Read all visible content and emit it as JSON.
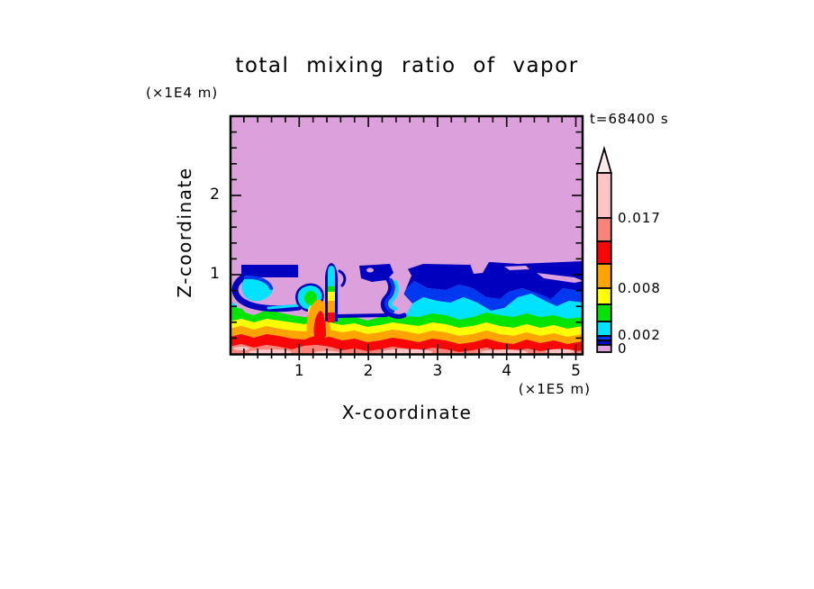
{
  "title": "total mixing ratio of vapor",
  "annotations": {
    "time_label": "t=68400 s",
    "y_axis_unit": "(×1E4 m)",
    "x_axis_unit": "(×1E5 m)"
  },
  "axes": {
    "x": {
      "label": "X-coordinate",
      "tick_labels": [
        "1",
        "2",
        "3",
        "4",
        "5"
      ]
    },
    "y": {
      "label": "Z-coordinate",
      "tick_labels": [
        "1",
        "2"
      ]
    }
  },
  "colorbar": {
    "labels": [
      "0.017",
      "0.008",
      "0.002",
      "0"
    ]
  },
  "colors": {
    "plum": "#DCA0DC",
    "navy": "#0000BE",
    "blue": "#0038F0",
    "cyan": "#00E2FF",
    "green": "#00E400",
    "yellow": "#FFFF00",
    "orange": "#FFA400",
    "red": "#F90606",
    "salmon": "#FB837B",
    "pink": "#FFC4C4",
    "pale": "#FFEAEA",
    "frame": "#000000"
  },
  "chart_data": {
    "type": "heatmap",
    "subtype": "filled-contour",
    "title": "total mixing ratio of vapor",
    "xlabel": "X-coordinate",
    "x_unit": "×1E5 m",
    "xlim": [
      0,
      5.1
    ],
    "x_ticks": [
      1,
      2,
      3,
      4,
      5
    ],
    "x_minor_step": 0.2,
    "ylabel": "Z-coordinate",
    "y_unit": "×1E4 m",
    "ylim": [
      0,
      3.0
    ],
    "y_ticks": [
      1,
      2
    ],
    "y_minor_step": 0.2,
    "time_annotation": "t=68400 s",
    "grid": false,
    "colorbar": {
      "orientation": "vertical",
      "arrow_top": true,
      "labeled_levels": [
        0,
        0.002,
        0.008,
        0.017
      ],
      "bands_bottom_to_top": [
        {
          "color": "#DCA0DC",
          "meaning": "lowest band, starts at 0"
        },
        {
          "color": "#0000BE",
          "meaning": "between 0 and 0.002"
        },
        {
          "color": "#0038F0",
          "meaning": "up to 0.002"
        },
        {
          "color": "#00E2FF",
          "meaning": "just above 0.002"
        },
        {
          "color": "#00E400",
          "meaning": "between 0.002 and 0.008"
        },
        {
          "color": "#FFFF00",
          "meaning": "up to 0.008"
        },
        {
          "color": "#FFA400",
          "meaning": "just above 0.008"
        },
        {
          "color": "#F90606",
          "meaning": "between 0.008 and 0.017"
        },
        {
          "color": "#FB837B",
          "meaning": "up to 0.017"
        },
        {
          "color": "#FFC4C4",
          "meaning": "above 0.017"
        },
        {
          "color": "#FFEAEA",
          "meaning": "overflow arrow"
        }
      ]
    },
    "field_summary": [
      "z > ~1.1 (×1E4 m): entire upper domain in lowest mixing-ratio band (plum)",
      "z ≈ 0.8–1.1: navy/blue filament deck, thick stratified navy-blue-cyan layers for x > 2.6",
      "z < ~0.6: near-horizontal layers increasing toward surface: green, yellow, orange, red, salmon",
      "narrow convective plume near x ≈ 1.45 lifting cyan/green/yellow/orange air to z ≈ 1.3",
      "rounded cyan/green thermal near x ≈ 1.15, z ≈ 0.7",
      "hook-shaped curl of navy/blue/cyan near x ≈ 0.1–1.0, z ≈ 0.7–1.0",
      "descending navy/blue/cyan filament near x ≈ 2.2–2.5",
      "light-pink patches embedded in surface salmon layer"
    ]
  }
}
